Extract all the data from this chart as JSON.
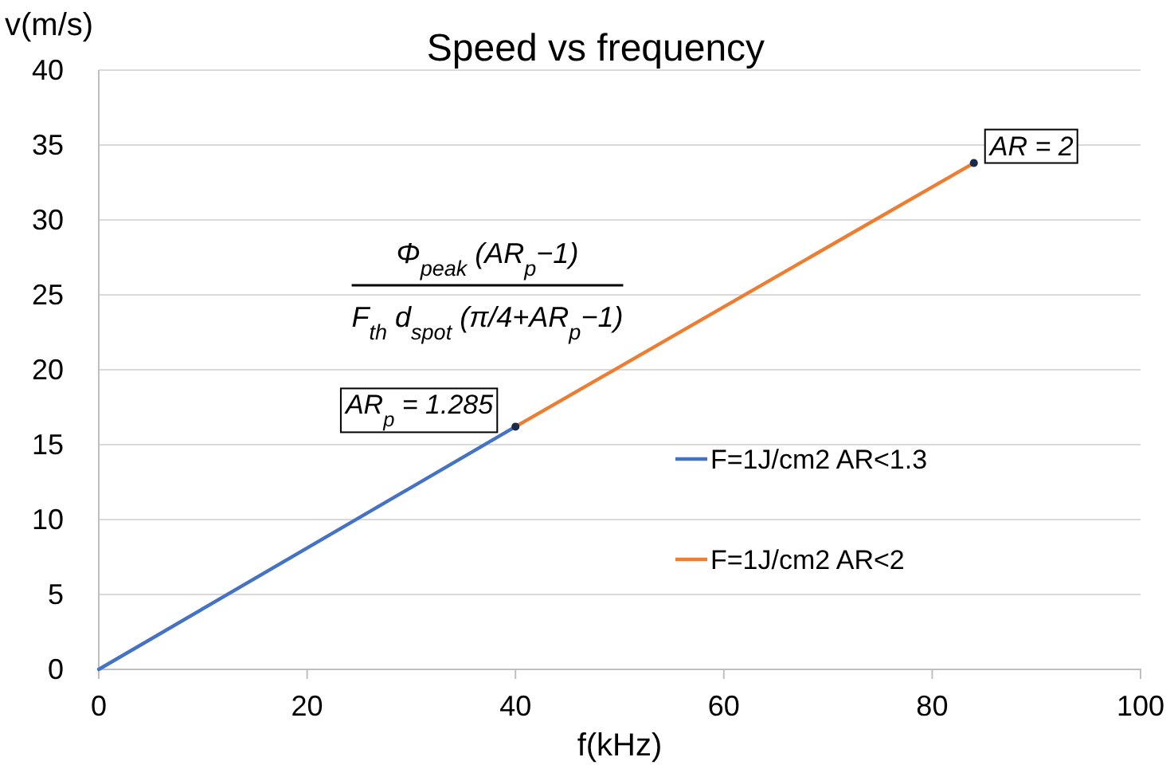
{
  "chart_data": {
    "type": "line",
    "title": "Speed vs frequency",
    "xlabel": "f(kHz)",
    "ylabel": "v(m/s)",
    "xlim": [
      0,
      100
    ],
    "xticks": [
      0,
      20,
      40,
      60,
      80,
      100
    ],
    "ylim": [
      0,
      40
    ],
    "yticks": [
      0,
      5,
      10,
      15,
      20,
      25,
      30,
      35,
      40
    ],
    "grid": "y",
    "legend": "right",
    "line_style": "solid",
    "series": [
      {
        "name": "F=1J/cm2 AR<1.3",
        "color": "#4472c4",
        "x": [
          0,
          40
        ],
        "values": [
          0,
          16.2
        ]
      },
      {
        "name": "F=1J/cm2 AR<2",
        "color": "#ed7d31",
        "x": [
          40,
          84
        ],
        "values": [
          16.2,
          33.8
        ]
      },
      {
        "type": "scatter",
        "marker": "circle",
        "color": "#1b2a4a",
        "x": [
          40,
          84
        ],
        "values": [
          16.2,
          33.8
        ]
      }
    ],
    "annotations": [
      {
        "text": "AR$_{p}$ = 1.285",
        "x": 40,
        "y": 16.2
      },
      {
        "text": "AR = 2",
        "x": 84,
        "y": 33.8
      },
      "Φ$_{peak}$ (AR$_{p}$−1)",
      "F$_{th}$ d$_{spot}$ (π/4+AR$_{p}$−1)"
    ]
  }
}
